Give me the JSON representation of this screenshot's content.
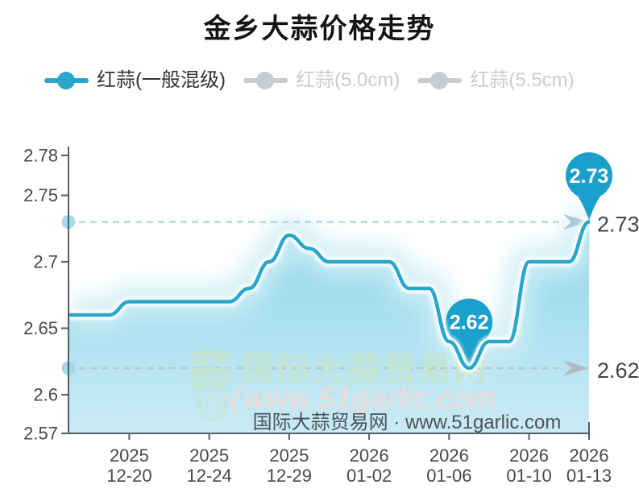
{
  "title": "金乡大蒜价格走势",
  "legend": {
    "items": [
      {
        "label": "红蒜(一般混级)",
        "active": true
      },
      {
        "label": "红蒜(5.0cm)",
        "active": false
      },
      {
        "label": "红蒜(5.5cm)",
        "active": false
      }
    ]
  },
  "colors": {
    "line": "#29A6C9",
    "pin": "#1B9FCB",
    "area_top": "#79CEE6",
    "area_bottom": "#CBEBF5",
    "ambient_glow": "#CCEDF5",
    "inner_glow": "#FFFFFF",
    "axis": "#565E64",
    "tick_label": "#45494D",
    "outside_label": "#3F464B",
    "axis_dot": "#A5D8E8",
    "legend_active_text": "#333333",
    "legend_inactive": "#C8CCCE",
    "pointer_blue_line": "#ABDAE8",
    "pointer_blue_arrow": "#A9C9D9",
    "pointer_gray_line": "#B6C8CF",
    "pointer_gray_arrow": "#AFBAC0",
    "watermark_green": "#C6E5D0",
    "watermark_pink": "#F3D9D1",
    "credit_text": "#4C5357"
  },
  "watermark": {
    "logo_char": "蒜",
    "site_name": "国际大蒜贸易网",
    "paren": "(",
    "site_url": "www.51garlic.com",
    "credit": "国际大蒜贸易网 · www.51garlic.com"
  },
  "chart_data": {
    "type": "area",
    "title": "金乡大蒜价格走势",
    "legend_position": "top",
    "grid": false,
    "ylim": [
      2.57,
      2.78
    ],
    "yticks": [
      {
        "v": 2.78,
        "label": "2.78"
      },
      {
        "v": 2.75,
        "label": "2.75"
      },
      {
        "v": 2.7,
        "label": "2.7"
      },
      {
        "v": 2.65,
        "label": "2.65"
      },
      {
        "v": 2.6,
        "label": "2.6"
      },
      {
        "v": 2.57,
        "label": "2.57"
      }
    ],
    "xticks": [
      {
        "index": 3,
        "year": "2025",
        "date": "12-20"
      },
      {
        "index": 7,
        "year": "2025",
        "date": "12-24"
      },
      {
        "index": 11,
        "year": "2025",
        "date": "12-29"
      },
      {
        "index": 15,
        "year": "2026",
        "date": "01-02"
      },
      {
        "index": 19,
        "year": "2026",
        "date": "01-06"
      },
      {
        "index": 23,
        "year": "2026",
        "date": "01-10"
      },
      {
        "index": 26,
        "year": "2026",
        "date": "01-13"
      }
    ],
    "series": [
      {
        "name": "红蒜(一般混级)",
        "x": [
          "2025-12-17",
          "2025-12-18",
          "2025-12-19",
          "2025-12-20",
          "2025-12-21",
          "2025-12-22",
          "2025-12-23",
          "2025-12-24",
          "2025-12-25",
          "2025-12-26",
          "2025-12-27",
          "2025-12-29",
          "2025-12-30",
          "2025-12-31",
          "2026-01-01",
          "2026-01-02",
          "2026-01-03",
          "2026-01-04",
          "2026-01-05",
          "2026-01-06",
          "2026-01-07",
          "2026-01-08",
          "2026-01-09",
          "2026-01-10",
          "2026-01-11",
          "2026-01-12",
          "2026-01-13"
        ],
        "values": [
          2.66,
          2.66,
          2.66,
          2.67,
          2.67,
          2.67,
          2.67,
          2.67,
          2.67,
          2.68,
          2.7,
          2.72,
          2.71,
          2.7,
          2.7,
          2.7,
          2.7,
          2.68,
          2.68,
          2.64,
          2.62,
          2.64,
          2.64,
          2.7,
          2.7,
          2.7,
          2.73
        ]
      }
    ],
    "hidden_series": [
      "红蒜(5.0cm)",
      "红蒜(5.5cm)"
    ],
    "markers": [
      {
        "label": "2.73",
        "index": 26,
        "value": 2.73
      },
      {
        "label": "2.62",
        "index": 20,
        "value": 2.62
      }
    ],
    "pointers": [
      {
        "label": "2.73",
        "value": 2.73,
        "tone": "blue"
      },
      {
        "label": "2.62",
        "value": 2.62,
        "tone": "gray"
      }
    ]
  }
}
